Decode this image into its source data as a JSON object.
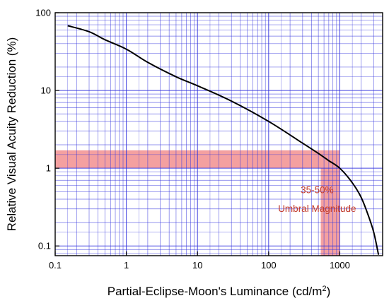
{
  "chart_data": {
    "type": "line",
    "x_scale": "log",
    "y_scale": "log",
    "xlim": [
      0.1,
      4000
    ],
    "ylim": [
      0.075,
      100
    ],
    "grid": true,
    "xlabel": "Partial-Eclipse-Moon's Luminance (cd/m",
    "xlabel_sup": "2",
    "xlabel_end": ")",
    "ylabel": "Relative Visual Acuity Reduction  (%)",
    "x_ticks": [
      {
        "value": 0.1,
        "label": "0.1"
      },
      {
        "value": 1,
        "label": "1"
      },
      {
        "value": 10,
        "label": "10"
      },
      {
        "value": 100,
        "label": "100"
      },
      {
        "value": 1000,
        "label": "1000"
      }
    ],
    "y_ticks": [
      {
        "value": 0.1,
        "label": "0.1"
      },
      {
        "value": 1,
        "label": "1"
      },
      {
        "value": 10,
        "label": "10"
      },
      {
        "value": 100,
        "label": "100"
      }
    ],
    "series": [
      {
        "color": "#000000",
        "x": [
          0.15,
          0.3,
          0.5,
          1,
          2,
          5,
          10,
          30,
          100,
          300,
          500,
          700,
          1000,
          1500,
          2000,
          2500,
          3000,
          3500
        ],
        "y": [
          68,
          57,
          45,
          34,
          23,
          15,
          11.5,
          7.3,
          4.0,
          2.1,
          1.55,
          1.25,
          1.0,
          0.65,
          0.42,
          0.25,
          0.15,
          0.077
        ]
      }
    ],
    "highlight_band": {
      "color": "#f08080",
      "y_range": [
        1.0,
        1.7
      ],
      "x_range": [
        540,
        1000
      ]
    },
    "annotations": [
      {
        "text": "35-50%",
        "x": 480,
        "y": 0.48
      },
      {
        "text": "Umbral Magnitude",
        "x": 480,
        "y": 0.275
      }
    ],
    "grid_color": "#3333dd",
    "frame_color": "#000000"
  }
}
